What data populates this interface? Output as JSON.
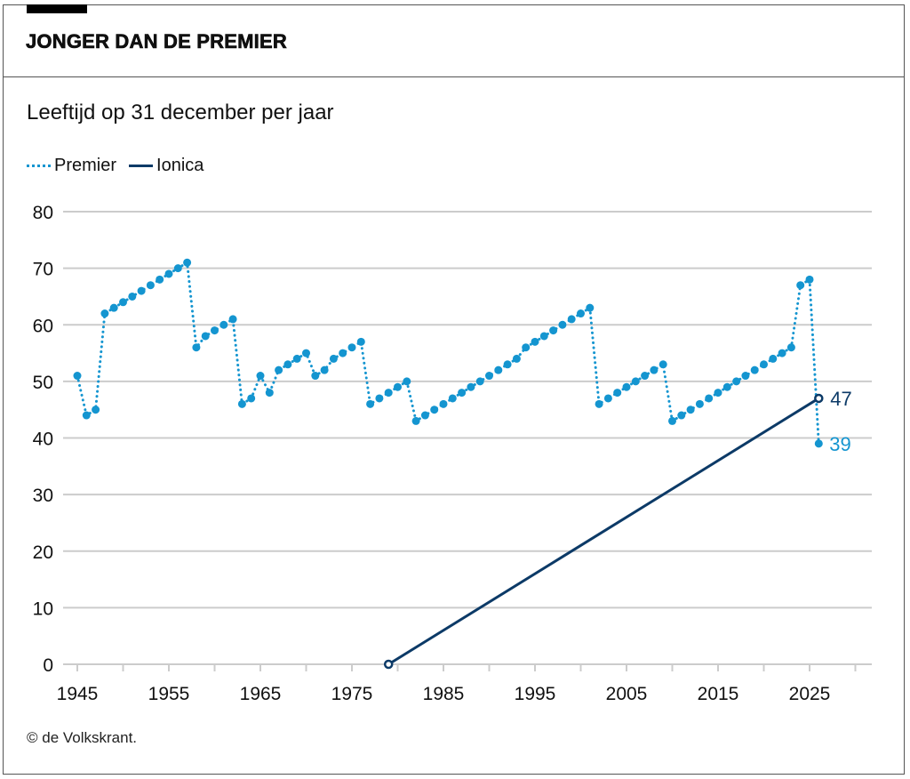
{
  "header": {
    "title": "JONGER DAN DE PREMIER"
  },
  "subtitle": "Leeftijd op 31 december per jaar",
  "legend": [
    {
      "label": "Premier",
      "style": "dotted",
      "color": "#1495d0"
    },
    {
      "label": "Ionica",
      "style": "solid",
      "color": "#0c3a67"
    }
  ],
  "footer": "© de Volkskrant.",
  "chart_data": {
    "type": "line",
    "title": "JONGER DAN DE PREMIER",
    "subtitle": "Leeftijd op 31 december per jaar",
    "xlabel": "",
    "ylabel": "",
    "xlim": [
      1943.5,
      2032
    ],
    "ylim": [
      0,
      80
    ],
    "yticks": [
      0,
      10,
      20,
      30,
      40,
      50,
      60,
      70,
      80
    ],
    "xticks_minor": [
      1945,
      1950,
      1955,
      1960,
      1965,
      1970,
      1975,
      1980,
      1985,
      1990,
      1995,
      2000,
      2005,
      2010,
      2015,
      2020,
      2025,
      2030
    ],
    "xtick_labels": [
      "1945",
      "1955",
      "1965",
      "1975",
      "1985",
      "1995",
      "2005",
      "2015",
      "2025"
    ],
    "xtick_label_values": [
      1945,
      1955,
      1965,
      1975,
      1985,
      1995,
      2005,
      2015,
      2025
    ],
    "grid": "horizontal",
    "legend_position": "top-left",
    "series": [
      {
        "name": "Premier",
        "color": "#1495d0",
        "style": "dotted-with-markers",
        "x": [
          1945,
          1946,
          1947,
          1948,
          1949,
          1950,
          1951,
          1952,
          1953,
          1954,
          1955,
          1956,
          1957,
          1958,
          1959,
          1960,
          1961,
          1962,
          1963,
          1964,
          1965,
          1966,
          1967,
          1968,
          1969,
          1970,
          1971,
          1972,
          1973,
          1974,
          1975,
          1976,
          1977,
          1978,
          1979,
          1980,
          1981,
          1982,
          1983,
          1984,
          1985,
          1986,
          1987,
          1988,
          1989,
          1990,
          1991,
          1992,
          1993,
          1994,
          1995,
          1996,
          1997,
          1998,
          1999,
          2000,
          2001,
          2002,
          2003,
          2004,
          2005,
          2006,
          2007,
          2008,
          2009,
          2010,
          2011,
          2012,
          2013,
          2014,
          2015,
          2016,
          2017,
          2018,
          2019,
          2020,
          2021,
          2022,
          2023,
          2024,
          2025,
          2026
        ],
        "values": [
          51,
          44,
          45,
          62,
          63,
          64,
          65,
          66,
          67,
          68,
          69,
          70,
          71,
          56,
          58,
          59,
          60,
          61,
          46,
          47,
          51,
          48,
          52,
          53,
          54,
          55,
          51,
          52,
          54,
          55,
          56,
          57,
          46,
          47,
          48,
          49,
          50,
          43,
          44,
          45,
          46,
          47,
          48,
          49,
          50,
          51,
          52,
          53,
          54,
          56,
          57,
          58,
          59,
          60,
          61,
          62,
          63,
          46,
          47,
          48,
          49,
          50,
          51,
          52,
          53,
          43,
          44,
          45,
          46,
          47,
          48,
          49,
          50,
          51,
          52,
          53,
          54,
          55,
          56,
          67,
          68,
          39
        ],
        "end_label": "39"
      },
      {
        "name": "Ionica",
        "color": "#0c3a67",
        "style": "solid",
        "x": [
          1979,
          2026
        ],
        "values": [
          0,
          47
        ],
        "end_label": "47"
      }
    ]
  }
}
